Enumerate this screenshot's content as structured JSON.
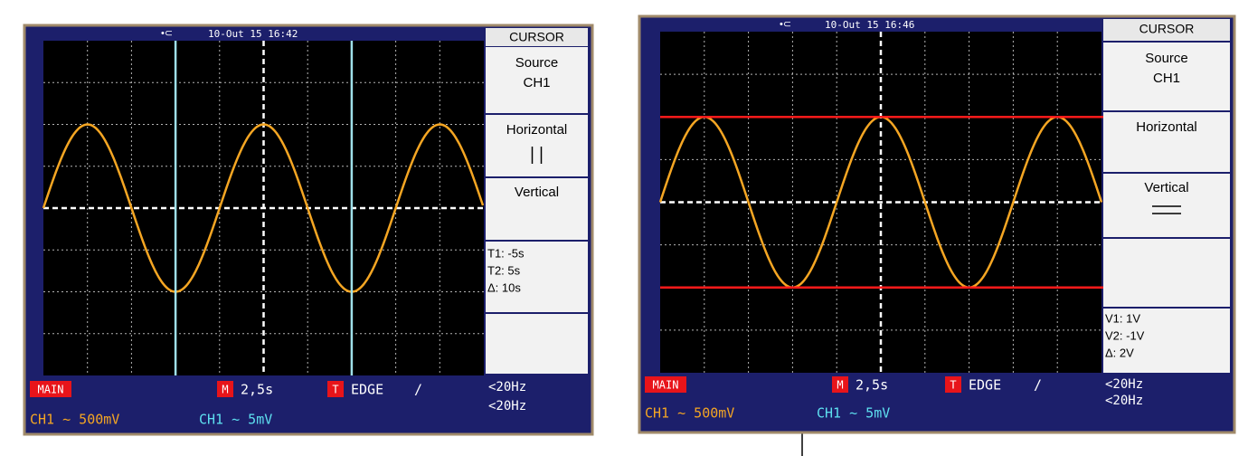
{
  "screens": [
    {
      "timestamp": "10-Out 15 16:42",
      "menu": {
        "title": "CURSOR",
        "source_label": "Source",
        "source_value": "CH1",
        "horizontal": "Horizontal",
        "vertical": "Vertical"
      },
      "readouts": [
        "T1: -5s",
        "T2: 5s",
        "Δ:  10s"
      ],
      "footer": {
        "main": "MAIN",
        "m_badge": "M",
        "timebase": "2,5s",
        "t_badge": "T",
        "trigger": "EDGE",
        "slope": "/",
        "filter1": "<20Hz",
        "filter2": "<20Hz",
        "ch1": "CH1 ~ 500mV",
        "ch2": "CH1 ~ 5mV"
      }
    },
    {
      "timestamp": "10-Out 15 16:46",
      "menu": {
        "title": "CURSOR",
        "source_label": "Source",
        "source_value": "CH1",
        "horizontal": "Horizontal",
        "vertical": "Vertical"
      },
      "readouts": [
        "V1: 1V",
        "V2: -1V",
        "Δ:  2V"
      ],
      "footer": {
        "main": "MAIN",
        "m_badge": "M",
        "timebase": "2,5s",
        "t_badge": "T",
        "trigger": "EDGE",
        "slope": "/",
        "filter1": "<20Hz",
        "filter2": "<20Hz",
        "ch1": "CH1 ~ 500mV",
        "ch2": "CH1 ~ 5mV"
      }
    }
  ]
}
